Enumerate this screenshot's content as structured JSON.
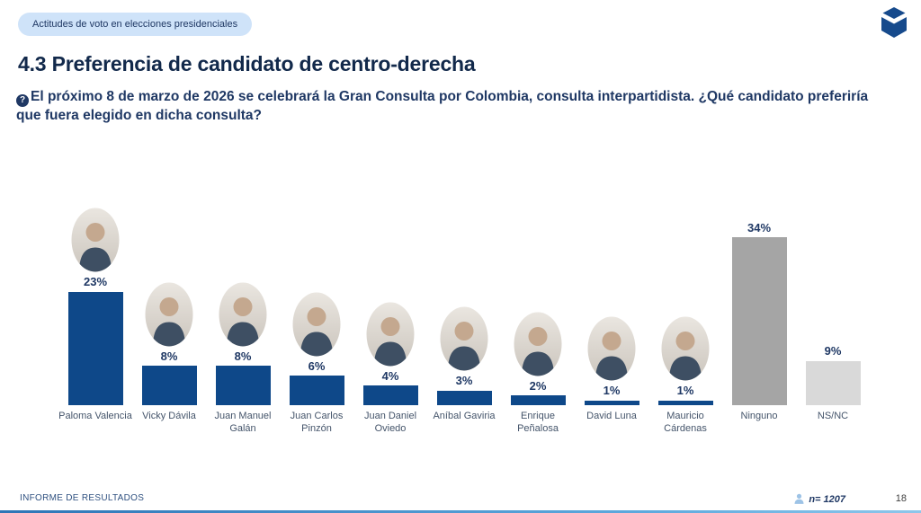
{
  "badge": {
    "label": "Actitudes de voto en elecciones presidenciales"
  },
  "logo": {
    "name": "cube-logo",
    "color": "#164a8c"
  },
  "title": "4.3 Preferencia de candidato de centro-derecha",
  "question": {
    "icon": "question-mark-icon",
    "icon_glyph": "?",
    "text": "El próximo 8 de marzo de 2026 se celebrará la Gran Consulta por Colombia, consulta interpartidista. ¿Qué candidato preferiría que fuera elegido en dicha consulta?"
  },
  "chart_data": {
    "type": "bar",
    "title": "Preferencia de candidato de centro-derecha",
    "categories": [
      "Paloma Valencia",
      "Vicky Dávila",
      "Juan Manuel Galán",
      "Juan Carlos Pinzón",
      "Juan Daniel Oviedo",
      "Aníbal Gaviria",
      "Enrique Peñalosa",
      "David Luna",
      "Mauricio Cárdenas",
      "Ninguno",
      "NS/NC"
    ],
    "values": [
      23,
      8,
      8,
      6,
      4,
      3,
      2,
      1,
      1,
      34,
      9
    ],
    "value_labels": [
      "23%",
      "8%",
      "8%",
      "6%",
      "4%",
      "3%",
      "2%",
      "1%",
      "1%",
      "34%",
      "9%"
    ],
    "has_photo": [
      true,
      true,
      true,
      true,
      true,
      true,
      true,
      true,
      true,
      false,
      false
    ],
    "bar_colors": [
      "#0e4889",
      "#0e4889",
      "#0e4889",
      "#0e4889",
      "#0e4889",
      "#0e4889",
      "#0e4889",
      "#0e4889",
      "#0e4889",
      "#a5a5a5",
      "#d9d9d9"
    ],
    "xlabel": "",
    "ylabel": "",
    "ylim": [
      0,
      40
    ],
    "grid": false,
    "legend": false,
    "value_label_position": "above-bar",
    "unit": "percent"
  },
  "footer": {
    "left": "INFORME DE RESULTADOS",
    "sample_icon": "person-icon",
    "sample_size": "n= 1207",
    "page_number": "18"
  }
}
